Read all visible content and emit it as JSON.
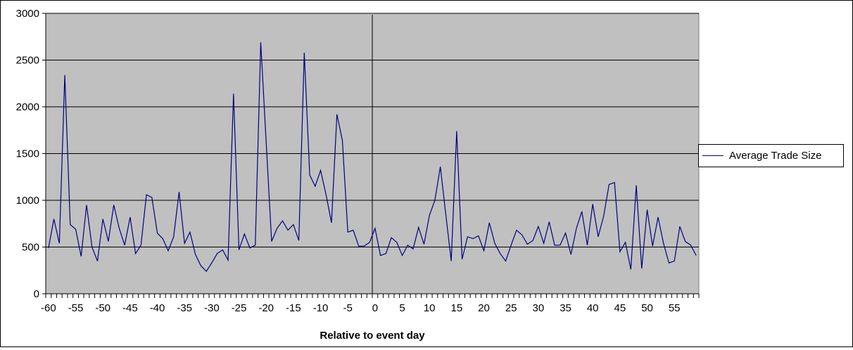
{
  "chart_data": {
    "type": "line",
    "title": "",
    "xlabel": "Relative to event day",
    "ylabel": "",
    "xlim": [
      -60,
      59
    ],
    "ylim": [
      0,
      3000
    ],
    "y_ticks": [
      0,
      500,
      1000,
      1500,
      2000,
      2500,
      3000
    ],
    "x_tick_labels": [
      -60,
      -55,
      -50,
      -45,
      -40,
      -35,
      -30,
      -25,
      -20,
      -15,
      -10,
      -5,
      0,
      5,
      10,
      15,
      20,
      25,
      30,
      35,
      40,
      45,
      50,
      55
    ],
    "grid": "horizontal",
    "event_line_x": 0,
    "legend_position": "right",
    "colors": {
      "plot_bg": "#c0c0c0",
      "series": "#000080"
    },
    "series": [
      {
        "name": "Average Trade Size",
        "x": [
          -60,
          -59,
          -58,
          -57,
          -56,
          -55,
          -54,
          -53,
          -52,
          -51,
          -50,
          -49,
          -48,
          -47,
          -46,
          -45,
          -44,
          -43,
          -42,
          -41,
          -40,
          -39,
          -38,
          -37,
          -36,
          -35,
          -34,
          -33,
          -32,
          -31,
          -30,
          -29,
          -28,
          -27,
          -26,
          -25,
          -24,
          -23,
          -22,
          -21,
          -20,
          -19,
          -18,
          -17,
          -16,
          -15,
          -14,
          -13,
          -12,
          -11,
          -10,
          -9,
          -8,
          -7,
          -6,
          -5,
          -4,
          -3,
          -2,
          -1,
          0,
          1,
          2,
          3,
          4,
          5,
          6,
          7,
          8,
          9,
          10,
          11,
          12,
          13,
          14,
          15,
          16,
          17,
          18,
          19,
          20,
          21,
          22,
          23,
          24,
          25,
          26,
          27,
          28,
          29,
          30,
          31,
          32,
          33,
          34,
          35,
          36,
          37,
          38,
          39,
          40,
          41,
          42,
          43,
          44,
          45,
          46,
          47,
          48,
          49,
          50,
          51,
          52,
          53,
          54,
          55,
          56,
          57,
          58,
          59
        ],
        "values": [
          490,
          800,
          540,
          2340,
          740,
          690,
          400,
          950,
          500,
          350,
          800,
          560,
          950,
          700,
          520,
          820,
          430,
          520,
          1060,
          1030,
          650,
          590,
          460,
          610,
          1090,
          540,
          660,
          420,
          300,
          240,
          330,
          430,
          470,
          360,
          2140,
          470,
          640,
          490,
          520,
          2690,
          1620,
          560,
          700,
          780,
          680,
          740,
          570,
          2580,
          1270,
          1150,
          1320,
          1060,
          760,
          1920,
          1640,
          660,
          680,
          510,
          510,
          550,
          700,
          410,
          430,
          600,
          550,
          410,
          520,
          480,
          710,
          530,
          840,
          1000,
          1360,
          850,
          350,
          1740,
          370,
          610,
          590,
          620,
          460,
          760,
          540,
          430,
          350,
          520,
          680,
          630,
          530,
          570,
          720,
          540,
          770,
          520,
          520,
          650,
          420,
          700,
          880,
          520,
          960,
          610,
          830,
          1170,
          1190,
          450,
          550,
          260,
          1160,
          270,
          900,
          510,
          820,
          540,
          330,
          350,
          720,
          560,
          520,
          410
        ]
      }
    ]
  }
}
